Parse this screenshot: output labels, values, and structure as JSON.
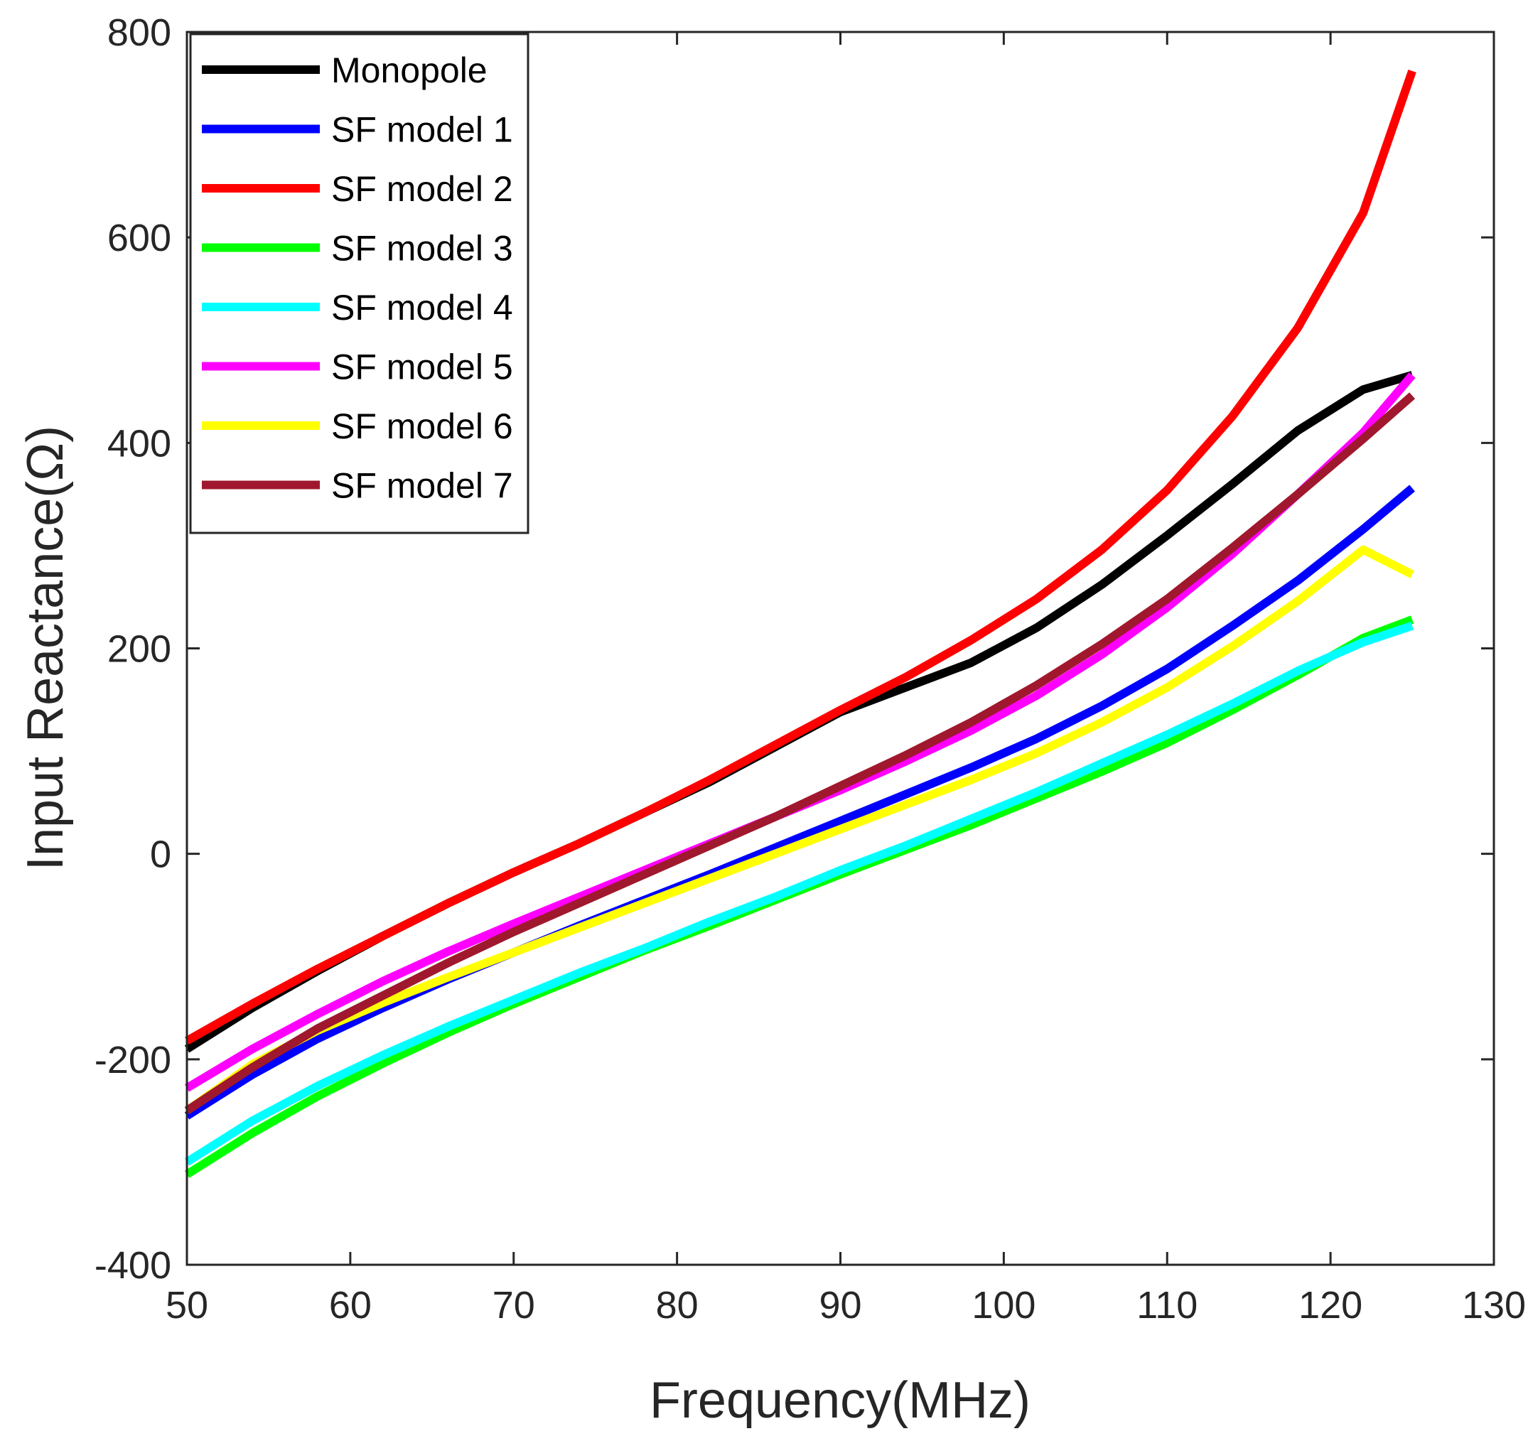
{
  "chart_data": {
    "type": "line",
    "title": "",
    "xlabel": "Frequency(MHz)",
    "ylabel": "Input Reactance(Ω)",
    "xlim": [
      50,
      130
    ],
    "ylim": [
      -400,
      800
    ],
    "xticks": [
      50,
      60,
      70,
      80,
      90,
      100,
      110,
      120,
      130
    ],
    "yticks": [
      -400,
      -200,
      0,
      200,
      400,
      600,
      800
    ],
    "grid": false,
    "legend_position": "top-left",
    "x": [
      50,
      54,
      58,
      62,
      66,
      70,
      74,
      78,
      82,
      86,
      90,
      94,
      98,
      102,
      106,
      110,
      114,
      118,
      122,
      125
    ],
    "series": [
      {
        "name": "Monopole",
        "color": "#000000",
        "values": [
          -190,
          -150,
          -114,
          -80,
          -48,
          -18,
          10,
          40,
          70,
          104,
          138,
          162,
          186,
          220,
          262,
          310,
          360,
          412,
          452,
          466
        ]
      },
      {
        "name": "SF model 1",
        "color": "#0000ff",
        "values": [
          -255,
          -215,
          -180,
          -150,
          -122,
          -96,
          -70,
          -45,
          -20,
          6,
          32,
          58,
          84,
          112,
          144,
          180,
          222,
          266,
          316,
          356
        ]
      },
      {
        "name": "SF model 2",
        "color": "#ff0000",
        "values": [
          -182,
          -146,
          -112,
          -80,
          -48,
          -18,
          10,
          40,
          72,
          106,
          140,
          172,
          208,
          248,
          296,
          354,
          426,
          512,
          624,
          762
        ]
      },
      {
        "name": "SF model 3",
        "color": "#00ff00",
        "values": [
          -312,
          -272,
          -236,
          -204,
          -174,
          -146,
          -120,
          -94,
          -70,
          -45,
          -20,
          4,
          28,
          54,
          80,
          108,
          140,
          174,
          210,
          228
        ]
      },
      {
        "name": "SF model 4",
        "color": "#00ffff",
        "values": [
          -300,
          -260,
          -226,
          -196,
          -168,
          -142,
          -116,
          -92,
          -66,
          -42,
          -16,
          8,
          34,
          60,
          88,
          116,
          146,
          178,
          206,
          222
        ]
      },
      {
        "name": "SF model 5",
        "color": "#ff00ff",
        "values": [
          -228,
          -190,
          -156,
          -124,
          -95,
          -68,
          -42,
          -16,
          10,
          36,
          62,
          90,
          120,
          154,
          194,
          240,
          292,
          350,
          410,
          466
        ]
      },
      {
        "name": "SF model 6",
        "color": "#ffff00",
        "values": [
          -250,
          -205,
          -172,
          -145,
          -120,
          -96,
          -72,
          -48,
          -24,
          0,
          24,
          48,
          72,
          98,
          128,
          162,
          202,
          246,
          296,
          272
        ]
      },
      {
        "name": "SF model 7",
        "color": "#a0182e",
        "values": [
          -250,
          -208,
          -170,
          -138,
          -106,
          -76,
          -48,
          -20,
          8,
          36,
          66,
          96,
          128,
          164,
          204,
          248,
          298,
          350,
          404,
          446
        ]
      }
    ]
  }
}
